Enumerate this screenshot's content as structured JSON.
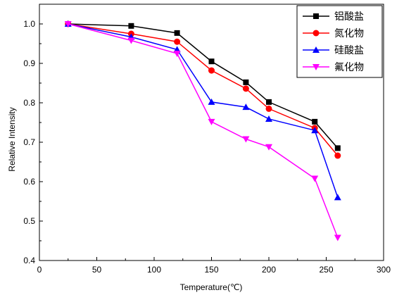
{
  "chart_data": {
    "type": "line",
    "xlabel": "Temperature(℃)",
    "ylabel": "Relative Intensity",
    "xlim": [
      0,
      300
    ],
    "ylim": [
      0.4,
      1.05
    ],
    "xticks": [
      0,
      50,
      100,
      150,
      200,
      250,
      300
    ],
    "yticks": [
      0.4,
      0.5,
      0.6,
      0.7,
      0.8,
      0.9,
      1.0
    ],
    "xtick_labels": [
      "0",
      "50",
      "100",
      "150",
      "200",
      "250",
      "300"
    ],
    "ytick_labels": [
      "0.4",
      "0.5",
      "0.6",
      "0.7",
      "0.8",
      "0.9",
      "1.0"
    ],
    "grid": false,
    "legend_position": "top-right",
    "x": [
      25,
      80,
      120,
      150,
      180,
      200,
      240,
      260
    ],
    "series": [
      {
        "name": "铝酸盐",
        "color": "#000000",
        "marker": "square",
        "values": [
          1.0,
          0.995,
          0.977,
          0.905,
          0.852,
          0.802,
          0.752,
          0.685
        ]
      },
      {
        "name": "氮化物",
        "color": "#ff0000",
        "marker": "circle",
        "values": [
          1.0,
          0.975,
          0.955,
          0.882,
          0.836,
          0.785,
          0.736,
          0.666
        ]
      },
      {
        "name": "硅酸盐",
        "color": "#0000ff",
        "marker": "triangle-up",
        "values": [
          1.0,
          0.967,
          0.935,
          0.802,
          0.789,
          0.759,
          0.73,
          0.56
        ]
      },
      {
        "name": "氟化物",
        "color": "#ff00ff",
        "marker": "triangle-down",
        "values": [
          1.0,
          0.958,
          0.925,
          0.752,
          0.708,
          0.688,
          0.608,
          0.458
        ]
      }
    ]
  }
}
